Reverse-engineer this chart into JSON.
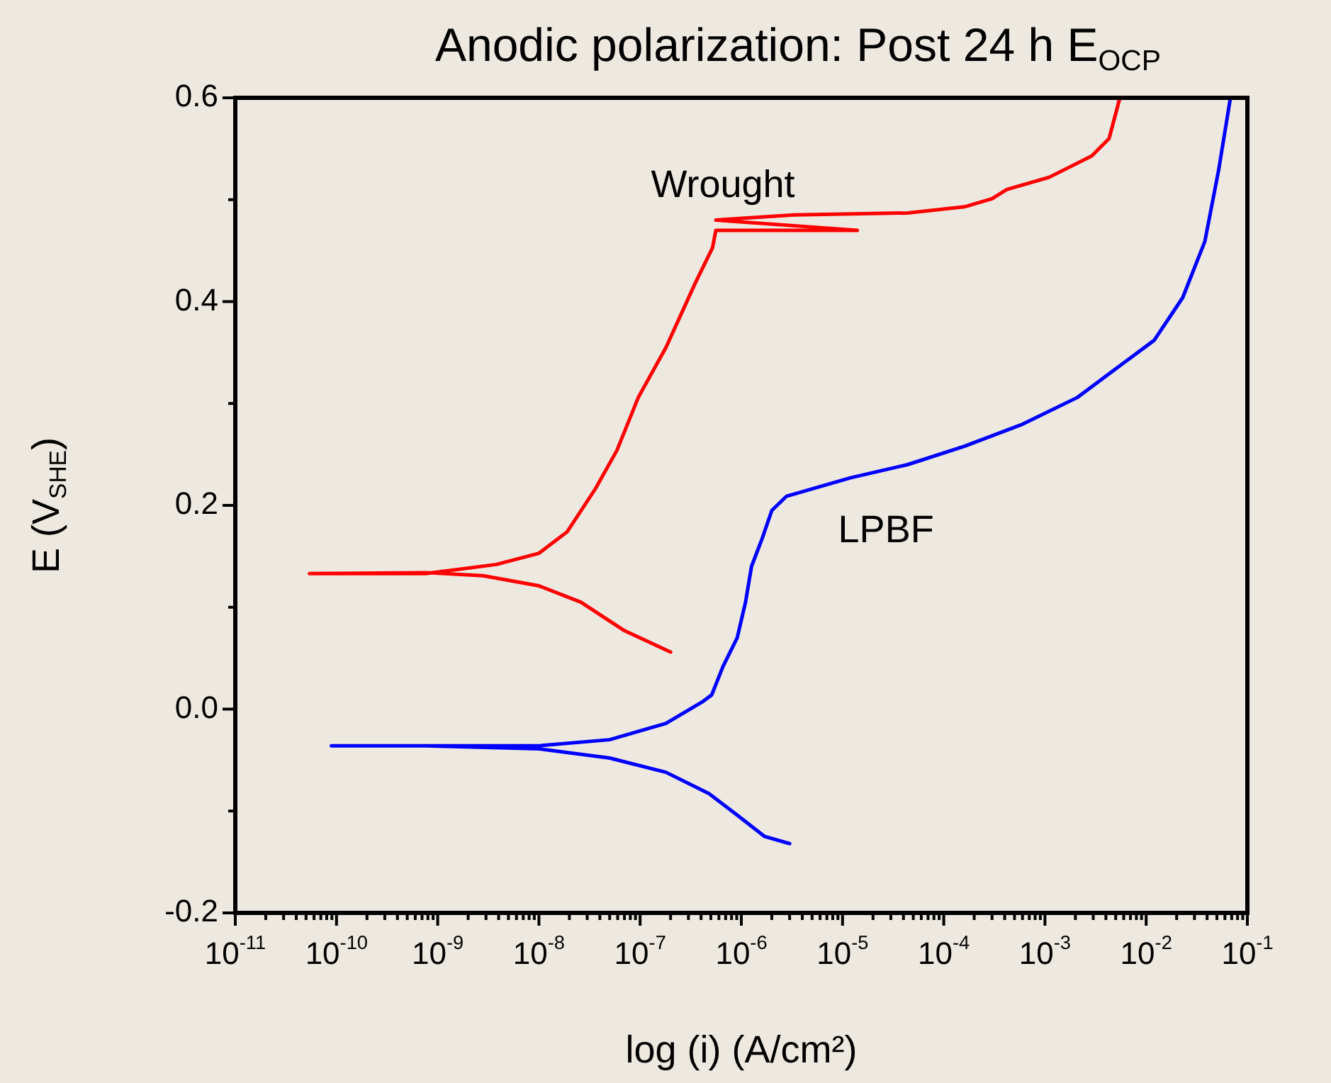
{
  "chart_data": {
    "type": "line",
    "title": "Anodic polarization: Post 24 h E$_{OCP}$",
    "xlabel": "log (i) (A/cm²)",
    "ylabel": "E (V$_{SHE}$)",
    "log": "x",
    "xlim": [
      1e-11,
      0.1
    ],
    "xticks": [
      {
        "value": 1e-11,
        "label": "10$^{-11}$"
      },
      {
        "value": 1e-10,
        "label": "10$^{-10}$"
      },
      {
        "value": 1e-09,
        "label": "10$^{-9}$"
      },
      {
        "value": 1e-08,
        "label": "10$^{-8}$"
      },
      {
        "value": 1e-07,
        "label": "10$^{-7}$"
      },
      {
        "value": 1e-06,
        "label": "10$^{-6}$"
      },
      {
        "value": 1e-05,
        "label": "10$^{-5}$"
      },
      {
        "value": 0.0001,
        "label": "10$^{-4}$"
      },
      {
        "value": 0.001,
        "label": "10$^{-3}$"
      },
      {
        "value": 0.01,
        "label": "10$^{-2}$"
      },
      {
        "value": 0.1,
        "label": "10$^{-1}$"
      }
    ],
    "ylim": [
      -0.2,
      0.6
    ],
    "yticks": [
      -0.2,
      {
        "value": -0.1,
        "label": null
      },
      {
        "value": 0,
        "label": "0.0"
      },
      {
        "value": 0.1,
        "label": null
      },
      0.2,
      {
        "value": 0.3,
        "label": null
      },
      0.4,
      {
        "value": 0.5,
        "label": null
      },
      0.6
    ],
    "grid": false,
    "legend": false,
    "marker": "none",
    "line_style": "solid",
    "series": [
      {
        "name": "Wrought",
        "color": "#ff0000",
        "x": [
          2e-07,
          7e-08,
          2.6e-08,
          1e-08,
          2.8e-09,
          7.6e-10,
          5.4e-11,
          7.6e-10,
          3.8e-09,
          1e-08,
          1.9e-08,
          3.6e-08,
          5.9e-08,
          9.6e-08,
          1.8e-07,
          3.5e-07,
          5.2e-07,
          5.6e-07,
          1.4e-05,
          5.6e-07,
          3.3e-06,
          4.4e-05,
          0.00016,
          0.0003,
          0.00042,
          0.0011,
          0.0029,
          0.0043,
          0.0055
        ],
        "values": [
          0.056,
          0.077,
          0.105,
          0.121,
          0.131,
          0.134,
          0.133,
          0.133,
          0.142,
          0.153,
          0.174,
          0.216,
          0.254,
          0.306,
          0.355,
          0.418,
          0.453,
          0.47,
          0.47,
          0.48,
          0.485,
          0.487,
          0.493,
          0.501,
          0.51,
          0.522,
          0.543,
          0.56,
          0.6
        ]
      },
      {
        "name": "LPBF",
        "color": "#0000ff",
        "x": [
          3e-06,
          1.7e-06,
          9.1e-07,
          4.8e-07,
          1.8e-07,
          5e-08,
          1e-08,
          7.6e-10,
          8.9e-11,
          7.6e-10,
          1e-08,
          5e-08,
          1.8e-07,
          4.1e-07,
          5.1e-07,
          6.6e-07,
          9.1e-07,
          1.1e-06,
          1.26e-06,
          1.6e-06,
          2e-06,
          2.8e-06,
          1.2e-05,
          4.4e-05,
          0.00016,
          0.00058,
          0.0021,
          0.0055,
          0.012,
          0.023,
          0.038,
          0.052,
          0.068
        ],
        "values": [
          -0.132,
          -0.125,
          -0.104,
          -0.083,
          -0.062,
          -0.048,
          -0.039,
          -0.036,
          -0.036,
          -0.036,
          -0.036,
          -0.03,
          -0.014,
          0.007,
          0.014,
          0.042,
          0.07,
          0.105,
          0.14,
          0.167,
          0.195,
          0.209,
          0.227,
          0.24,
          0.258,
          0.279,
          0.306,
          0.337,
          0.362,
          0.404,
          0.459,
          0.529,
          0.6
        ]
      }
    ]
  }
}
